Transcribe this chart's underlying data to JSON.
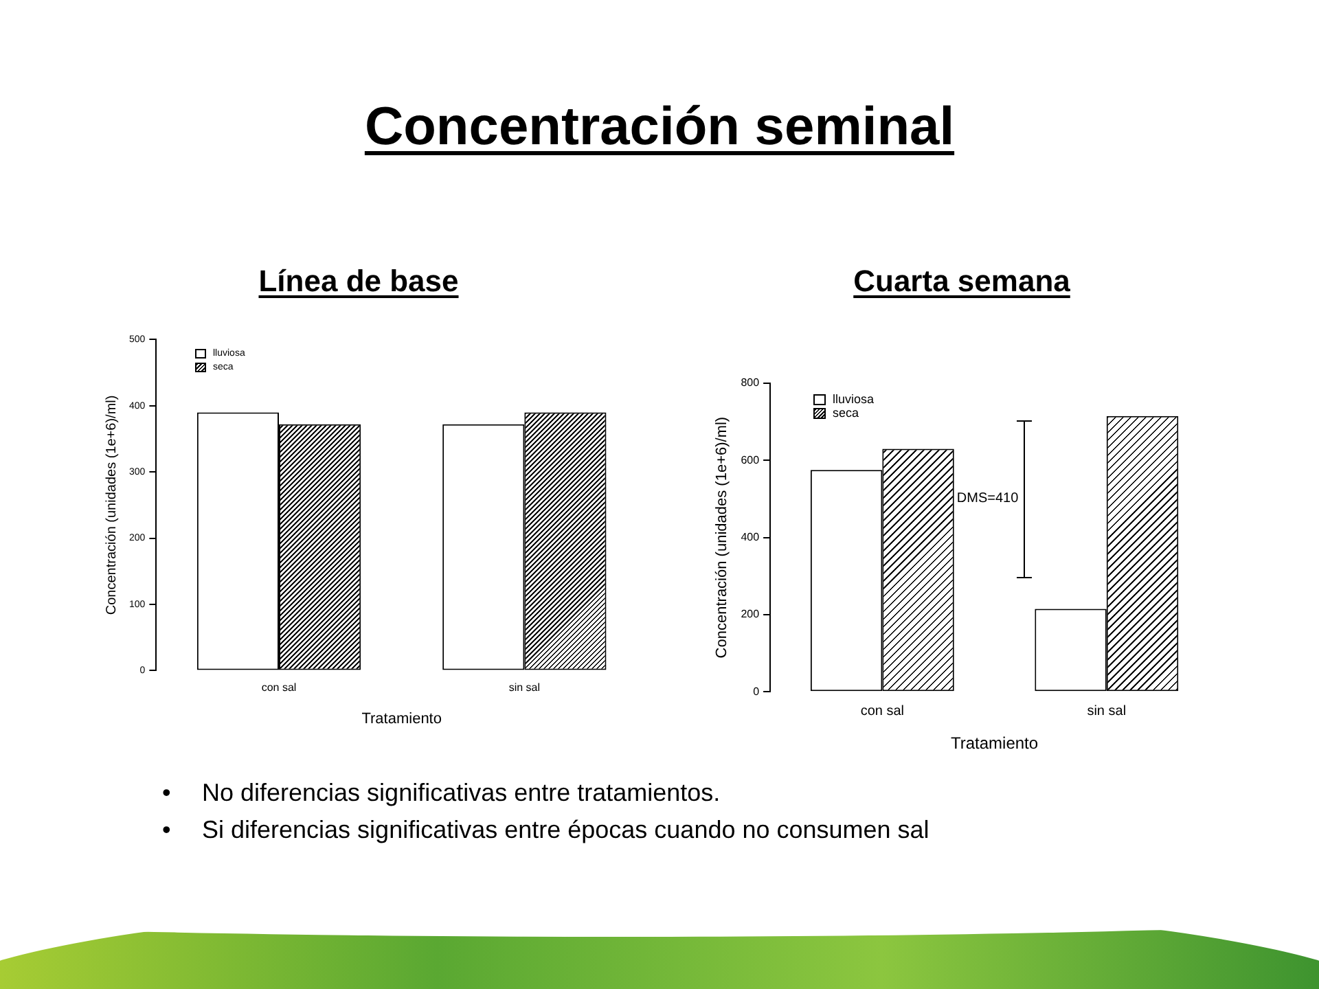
{
  "chart_data": [
    {
      "type": "other",
      "title": "Concentración seminal",
      "annotations": [
        "•\tNo diferencias significativas entre tratamientos.",
        "•\tSi diferencias significativas entre épocas cuando no consumen sal"
      ]
    },
    {
      "type": "bar",
      "title": "Línea de base",
      "categories": [
        "con sal",
        "sin sal"
      ],
      "series": [
        {
          "name": "lluviosa",
          "color": "#ffffff",
          "values": [
            390,
            372
          ]
        },
        {
          "name": "seca",
          "color": "#000000",
          "values": [
            372,
            390
          ]
        }
      ],
      "xlabel": "Tratamiento",
      "ylabel": "Concentración (unidades (1e+6)/ml)",
      "ylim": [
        0,
        500
      ],
      "yticks": [
        0,
        100,
        200,
        300,
        400,
        500
      ],
      "legend": "top left"
    },
    {
      "type": "bar",
      "title": "Cuarta semana",
      "categories": [
        "con sal",
        "sin sal"
      ],
      "series": [
        {
          "name": "lluviosa",
          "color": "#ffffff",
          "values": [
            575,
            215
          ]
        },
        {
          "name": "seca",
          "color": "#000000",
          "values": [
            630,
            715
          ]
        }
      ],
      "xlabel": "Tratamiento",
      "ylabel": "Concentración (unidades (1e+6)/ml)",
      "ylim": [
        0,
        800
      ],
      "yticks": [
        0,
        200,
        400,
        600,
        800
      ],
      "legend": "top left",
      "annotations": [
        "DMS=410"
      ]
    }
  ]
}
